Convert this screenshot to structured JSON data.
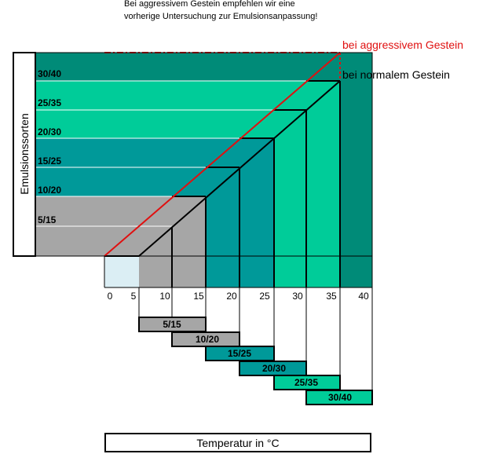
{
  "note": {
    "line1": "Bei aggressivem Gestein empfehlen wir eine",
    "line2": "vorherige Untersuchung zur Emulsionsanpassung!"
  },
  "yaxis_label": "Emulsionssorten",
  "xaxis_label": "Temperatur in °C",
  "emulsion_grades": [
    "5/15",
    "10/20",
    "15/25",
    "20/30",
    "25/35",
    "30/40"
  ],
  "temperature_ticks": [
    0,
    5,
    10,
    15,
    20,
    25,
    30,
    35,
    40
  ],
  "bands": [
    {
      "grade": "5/15",
      "temp_from": 0,
      "temp_to": 15,
      "color": "#a6a6a6"
    },
    {
      "grade": "10/20",
      "temp_from": 0,
      "temp_to": 20,
      "color": "#009999"
    },
    {
      "grade": "15/25",
      "temp_from": 0,
      "temp_to": 25,
      "color": "#009999"
    },
    {
      "grade": "20/30",
      "temp_from": 0,
      "temp_to": 30,
      "color": "#00cc99"
    },
    {
      "grade": "25/35",
      "temp_from": 0,
      "temp_to": 35,
      "color": "#00cc99"
    },
    {
      "grade": "30/40",
      "temp_from": 0,
      "temp_to": 40,
      "color": "#008b78"
    }
  ],
  "colors": {
    "grey": "#a6a6a6",
    "teal": "#009999",
    "green": "#00cc99",
    "dark_green": "#008b78",
    "light_blue": "#dbeef4",
    "red": "#e01010",
    "black": "#000000"
  },
  "lines": {
    "aggressive": "bei aggressivem Gestein",
    "normal": "bei normalem Gestein"
  }
}
